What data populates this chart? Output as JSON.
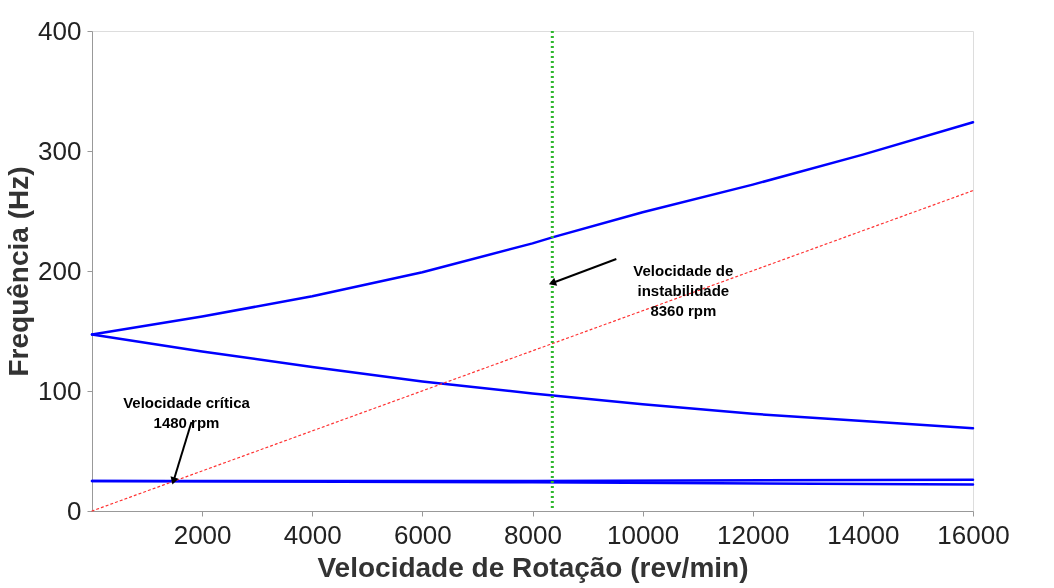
{
  "chart_data": {
    "type": "line",
    "xlabel": "Velocidade de Rotação (rev/min)",
    "ylabel": "Frequência (Hz)",
    "xlim": [
      0,
      16000
    ],
    "xticks": [
      2000,
      4000,
      6000,
      8000,
      10000,
      12000,
      14000,
      16000
    ],
    "ylim": [
      0,
      400
    ],
    "yticks": [
      0,
      100,
      200,
      300,
      400
    ],
    "grid": false,
    "marker": "none",
    "series": [
      {
        "color": "#0000ff",
        "line_style": "solid",
        "x": [
          0,
          2000,
          4000,
          6000,
          8000,
          8360,
          10000,
          12000,
          14000,
          16000
        ],
        "values": [
          147,
          162,
          179,
          199,
          223,
          228,
          249,
          272,
          297,
          324
        ]
      },
      {
        "color": "#0000ff",
        "line_style": "solid",
        "x": [
          0,
          2000,
          4000,
          6000,
          8000,
          10000,
          12000,
          14000,
          16000
        ],
        "values": [
          147,
          133,
          120,
          108,
          98,
          89,
          81,
          75,
          69
        ]
      },
      {
        "color": "#0000ff",
        "line_style": "solid",
        "x": [
          0,
          8000,
          16000
        ],
        "values": [
          25,
          25,
          26
        ]
      },
      {
        "color": "#0000ff",
        "line_style": "solid",
        "x": [
          0,
          8000,
          16000
        ],
        "values": [
          25,
          24,
          22
        ]
      },
      {
        "color": "#ff3333",
        "line_style": "dotted",
        "x": [
          0,
          16000
        ],
        "values": [
          0,
          267
        ]
      }
    ],
    "ref_lines": [
      {
        "axis": "x",
        "value": 8360,
        "color": "#2db82d",
        "line_style": "dotted"
      }
    ],
    "annotations": [
      {
        "text": "Velocidade crítica\n1480 rpm",
        "x": 1480,
        "y": 25
      },
      {
        "text": "Velocidade de\ninstabilidade\n8360 rpm",
        "x": 8360,
        "y": 190
      }
    ]
  }
}
